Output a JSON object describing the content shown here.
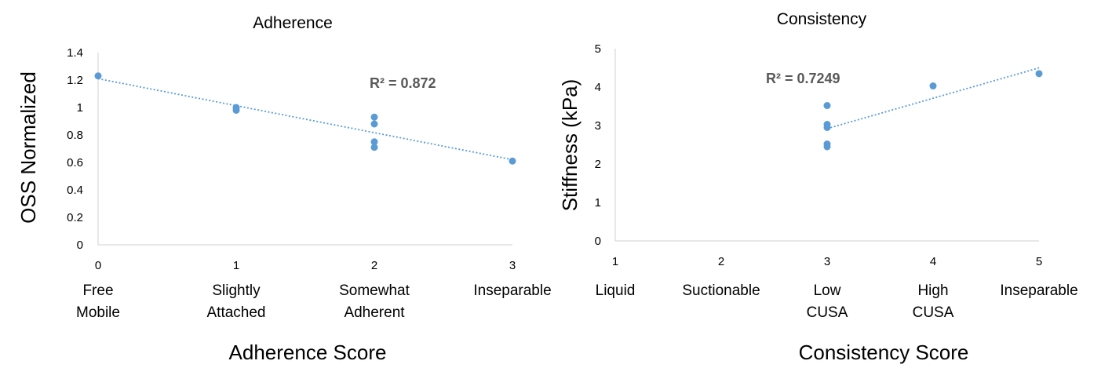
{
  "chart_data": [
    {
      "type": "scatter",
      "title": "Adherence",
      "xlabel": "Adherence Score",
      "ylabel": "OSS Normalized",
      "xlim": [
        0,
        3
      ],
      "ylim": [
        0,
        1.4
      ],
      "x_ticks": [
        "0",
        "1",
        "2",
        "3"
      ],
      "y_ticks": [
        "0",
        "0.2",
        "0.4",
        "0.6",
        "0.8",
        "1",
        "1.2",
        "1.4"
      ],
      "categories": [
        [
          "Free",
          "Mobile"
        ],
        [
          "Slightly",
          "Attached"
        ],
        [
          "Somewhat",
          "Adherent"
        ],
        [
          "Inseparable"
        ]
      ],
      "points": [
        {
          "x": 0,
          "y": 1.23
        },
        {
          "x": 1,
          "y": 1.0
        },
        {
          "x": 1,
          "y": 0.98
        },
        {
          "x": 2,
          "y": 0.93
        },
        {
          "x": 2,
          "y": 0.88
        },
        {
          "x": 2,
          "y": 0.75
        },
        {
          "x": 2,
          "y": 0.71
        },
        {
          "x": 3,
          "y": 0.61
        }
      ],
      "trendline": {
        "x": [
          0,
          3
        ],
        "y": [
          1.21,
          0.62
        ]
      },
      "r2_label": "R² = 0.872",
      "color": "#5b9bd5",
      "grid": false
    },
    {
      "type": "scatter",
      "title": "Consistency",
      "xlabel": "Consistency Score",
      "ylabel": "Stiffness (kPa)",
      "xlim": [
        1,
        5
      ],
      "ylim": [
        0,
        5
      ],
      "x_ticks": [
        "1",
        "2",
        "3",
        "4",
        "5"
      ],
      "y_ticks": [
        "0",
        "1",
        "2",
        "3",
        "4",
        "5"
      ],
      "categories": [
        [
          "Liquid"
        ],
        [
          "Suctionable"
        ],
        [
          "Low",
          "CUSA"
        ],
        [
          "High",
          "CUSA"
        ],
        [
          "Inseparable"
        ]
      ],
      "points": [
        {
          "x": 3,
          "y": 3.52
        },
        {
          "x": 3,
          "y": 3.03
        },
        {
          "x": 3,
          "y": 2.95
        },
        {
          "x": 3,
          "y": 2.52
        },
        {
          "x": 3,
          "y": 2.45
        },
        {
          "x": 4,
          "y": 4.03
        },
        {
          "x": 5,
          "y": 4.35
        }
      ],
      "trendline": {
        "x": [
          3,
          5
        ],
        "y": [
          2.92,
          4.5
        ]
      },
      "r2_label": "R² = 0.7249",
      "color": "#5b9bd5",
      "grid": false
    }
  ]
}
